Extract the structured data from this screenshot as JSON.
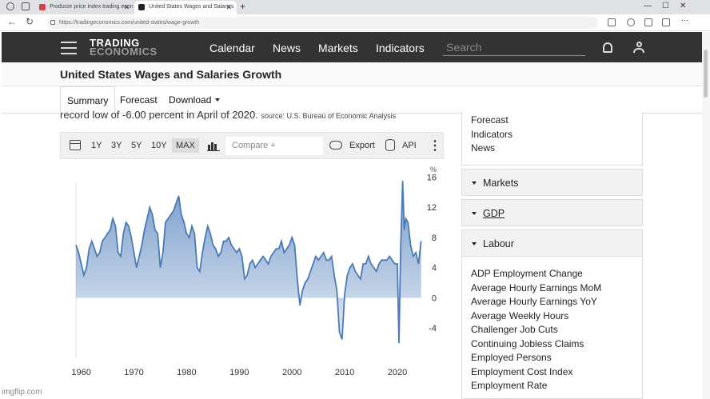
{
  "browser": {
    "tabs": [
      {
        "label": "Producer price index trading econ",
        "active": false
      },
      {
        "label": "United States Wages and Salaries",
        "active": true
      }
    ],
    "new_tab": "+",
    "url": "https://tradingeconomics.com/united-states/wage-growth"
  },
  "site": {
    "logo_line1": "TRADING",
    "logo_line2": "ECONOMICS",
    "nav": [
      "Calendar",
      "News",
      "Markets",
      "Indicators"
    ],
    "search_placeholder": "Search"
  },
  "page": {
    "title": "United States Wages and Salaries Growth",
    "subtabs": [
      "Summary",
      "Forecast",
      "Download"
    ],
    "description": "record low of -6.00 percent in April of 2020.",
    "source": "source: U.S. Bureau of Economic Analysis"
  },
  "chart_toolbar": {
    "ranges": [
      "1Y",
      "3Y",
      "5Y",
      "10Y",
      "MAX"
    ],
    "selected_range": "MAX",
    "compare_placeholder": "Compare +",
    "export_label": "Export",
    "api_label": "API"
  },
  "chart_data": {
    "type": "area",
    "title": "",
    "xlabel": "",
    "ylabel": "%",
    "unit_label": "%",
    "xlim": [
      1959,
      2025
    ],
    "ylim": [
      -8,
      17
    ],
    "yticks": [
      -4,
      0,
      4,
      8,
      12,
      16
    ],
    "xticks": [
      1960,
      1970,
      1980,
      1990,
      2000,
      2010,
      2020
    ],
    "grid": false,
    "color": "#4a7ab8",
    "x": [
      1959.0,
      1959.5,
      1960.0,
      1960.5,
      1961.0,
      1961.5,
      1962.0,
      1962.5,
      1963.0,
      1963.5,
      1964.0,
      1964.5,
      1965.0,
      1965.5,
      1966.0,
      1966.5,
      1967.0,
      1967.5,
      1968.0,
      1968.5,
      1969.0,
      1969.5,
      1970.0,
      1970.5,
      1971.0,
      1971.5,
      1972.0,
      1972.5,
      1973.0,
      1973.5,
      1974.0,
      1974.5,
      1975.0,
      1975.5,
      1976.0,
      1976.5,
      1977.0,
      1977.5,
      1978.0,
      1978.5,
      1979.0,
      1979.5,
      1980.0,
      1980.5,
      1981.0,
      1981.5,
      1982.0,
      1982.5,
      1983.0,
      1983.5,
      1984.0,
      1984.5,
      1985.0,
      1985.5,
      1986.0,
      1986.5,
      1987.0,
      1987.5,
      1988.0,
      1988.5,
      1989.0,
      1989.5,
      1990.0,
      1990.5,
      1991.0,
      1991.5,
      1992.0,
      1992.5,
      1993.0,
      1993.5,
      1994.0,
      1994.5,
      1995.0,
      1995.5,
      1996.0,
      1996.5,
      1997.0,
      1997.5,
      1998.0,
      1998.5,
      1999.0,
      1999.5,
      2000.0,
      2000.5,
      2001.0,
      2001.5,
      2002.0,
      2002.5,
      2003.0,
      2003.5,
      2004.0,
      2004.5,
      2005.0,
      2005.5,
      2006.0,
      2006.5,
      2007.0,
      2007.5,
      2008.0,
      2008.5,
      2009.0,
      2009.5,
      2010.0,
      2010.5,
      2011.0,
      2011.5,
      2012.0,
      2012.5,
      2013.0,
      2013.5,
      2014.0,
      2014.5,
      2015.0,
      2015.5,
      2016.0,
      2016.5,
      2017.0,
      2017.5,
      2018.0,
      2018.5,
      2019.0,
      2019.5,
      2020.0,
      2020.3,
      2020.6,
      2021.0,
      2021.3,
      2021.6,
      2022.0,
      2022.5,
      2023.0,
      2023.5,
      2024.0,
      2024.5
    ],
    "y": [
      7.0,
      6.0,
      4.5,
      3.0,
      4.0,
      6.5,
      7.5,
      6.5,
      5.5,
      6.0,
      7.5,
      8.0,
      8.5,
      9.0,
      10.5,
      9.5,
      6.0,
      5.5,
      8.5,
      10.0,
      9.5,
      8.0,
      6.0,
      4.0,
      5.5,
      7.0,
      9.0,
      10.5,
      12.0,
      11.0,
      9.0,
      8.5,
      4.0,
      6.0,
      10.0,
      10.5,
      11.0,
      11.5,
      12.5,
      13.5,
      11.0,
      10.0,
      8.5,
      8.0,
      9.5,
      8.5,
      4.0,
      3.5,
      6.0,
      8.0,
      9.5,
      8.5,
      7.0,
      6.5,
      5.5,
      6.0,
      7.5,
      7.5,
      8.0,
      7.0,
      6.5,
      6.0,
      6.5,
      5.5,
      2.5,
      3.0,
      4.5,
      5.0,
      4.0,
      4.5,
      5.0,
      5.5,
      5.0,
      4.5,
      5.5,
      6.0,
      6.5,
      6.5,
      7.5,
      6.0,
      6.5,
      7.0,
      8.0,
      7.0,
      2.5,
      -1.0,
      1.0,
      2.0,
      2.5,
      3.5,
      4.5,
      5.5,
      5.0,
      5.5,
      6.0,
      5.0,
      5.0,
      5.5,
      3.0,
      1.0,
      -4.5,
      -5.5,
      0.5,
      3.0,
      4.0,
      4.5,
      3.5,
      3.0,
      2.5,
      4.5,
      4.5,
      5.5,
      4.5,
      4.0,
      3.5,
      4.5,
      5.0,
      5.0,
      5.0,
      5.5,
      5.0,
      4.5,
      4.5,
      -6.0,
      6.0,
      15.5,
      9.0,
      10.5,
      10.0,
      7.0,
      5.5,
      6.0,
      4.5,
      7.5
    ]
  },
  "sidebar": {
    "top_links": [
      "Forecast",
      "Indicators",
      "News"
    ],
    "sections": [
      "Markets",
      "GDP",
      "Labour"
    ],
    "labour_links": [
      "ADP Employment Change",
      "Average Hourly Earnings MoM",
      "Average Hourly Earnings YoY",
      "Average Weekly Hours",
      "Challenger Job Cuts",
      "Continuing Jobless Claims",
      "Employed Persons",
      "Employment Cost Index",
      "Employment Rate"
    ]
  },
  "watermark": "imgflip.com"
}
